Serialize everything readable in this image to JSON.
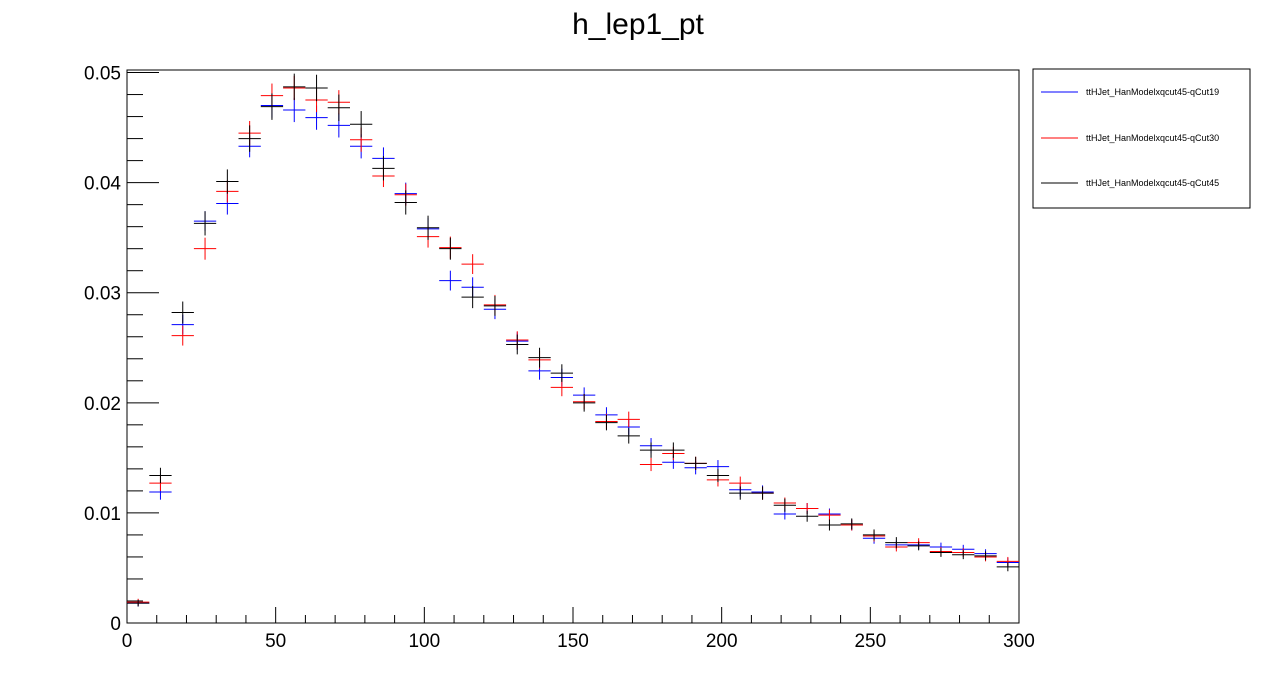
{
  "chart_data": {
    "type": "scatter",
    "title": "h_lep1_pt",
    "xlabel": "",
    "ylabel": "",
    "xlim": [
      0,
      300
    ],
    "ylim": [
      0,
      0.05
    ],
    "bin_width": 7.5,
    "x_ticks": [
      0,
      50,
      100,
      150,
      200,
      250,
      300
    ],
    "x_tick_labels": [
      "0",
      "50",
      "100",
      "150",
      "200",
      "250",
      "300"
    ],
    "y_ticks": [
      0,
      0.01,
      0.02,
      0.03,
      0.04,
      0.05
    ],
    "y_tick_labels": [
      "0",
      "0.01",
      "0.02",
      "0.03",
      "0.04",
      "0.05"
    ],
    "grid": false,
    "legend_position": "outside-top-right",
    "x": [
      3.75,
      11.25,
      18.75,
      26.25,
      33.75,
      41.25,
      48.75,
      56.25,
      63.75,
      71.25,
      78.75,
      86.25,
      93.75,
      101.25,
      108.75,
      116.25,
      123.75,
      131.25,
      138.75,
      146.25,
      153.75,
      161.25,
      168.75,
      176.25,
      183.75,
      191.25,
      198.75,
      206.25,
      213.75,
      221.25,
      228.75,
      236.25,
      243.75,
      251.25,
      258.75,
      266.25,
      273.75,
      281.25,
      288.75,
      296.25
    ],
    "series": [
      {
        "name": "ttHJet_HanModelxqcut45-qCut19",
        "color": "#0000ff",
        "values": [
          0.0018,
          0.0119,
          0.0271,
          0.0365,
          0.0381,
          0.0433,
          0.047,
          0.0466,
          0.0459,
          0.0452,
          0.0433,
          0.0422,
          0.039,
          0.0358,
          0.0311,
          0.0305,
          0.0285,
          0.0256,
          0.0229,
          0.0223,
          0.0207,
          0.0189,
          0.0178,
          0.0161,
          0.0146,
          0.0141,
          0.0142,
          0.0121,
          0.0119,
          0.0099,
          0.0104,
          0.0099,
          0.0089,
          0.0077,
          0.0071,
          0.0071,
          0.0069,
          0.0067,
          0.0063,
          0.0055
        ],
        "errors": [
          0.0003,
          0.0007,
          0.0009,
          0.0009,
          0.001,
          0.001,
          0.0011,
          0.0011,
          0.0011,
          0.0011,
          0.0011,
          0.001,
          0.001,
          0.001,
          0.0009,
          0.0009,
          0.0009,
          0.0008,
          0.0008,
          0.0008,
          0.0007,
          0.0007,
          0.0007,
          0.0007,
          0.0006,
          0.0006,
          0.0006,
          0.0006,
          0.0006,
          0.0005,
          0.0005,
          0.0005,
          0.0005,
          0.0005,
          0.0004,
          0.0004,
          0.0004,
          0.0004,
          0.0004,
          0.0004
        ]
      },
      {
        "name": "ttHJet_HanModelxqcut45-qCut30",
        "color": "#ff0000",
        "values": [
          0.0019,
          0.0127,
          0.0261,
          0.034,
          0.0392,
          0.0445,
          0.0479,
          0.0486,
          0.0475,
          0.0473,
          0.0439,
          0.0406,
          0.0389,
          0.0351,
          0.0341,
          0.0326,
          0.0289,
          0.0257,
          0.0239,
          0.0214,
          0.0201,
          0.0183,
          0.0185,
          0.0144,
          0.0154,
          0.0145,
          0.013,
          0.0127,
          0.0118,
          0.0109,
          0.0104,
          0.0098,
          0.0089,
          0.0079,
          0.0069,
          0.0073,
          0.0065,
          0.0064,
          0.006,
          0.0056
        ],
        "errors": [
          0.0003,
          0.0007,
          0.0009,
          0.001,
          0.001,
          0.0011,
          0.0011,
          0.0011,
          0.0011,
          0.0011,
          0.0011,
          0.001,
          0.001,
          0.001,
          0.001,
          0.0009,
          0.0009,
          0.0008,
          0.0008,
          0.0008,
          0.0007,
          0.0007,
          0.0007,
          0.0006,
          0.0006,
          0.0006,
          0.0006,
          0.0006,
          0.0006,
          0.0005,
          0.0005,
          0.0005,
          0.0005,
          0.0005,
          0.0004,
          0.0004,
          0.0004,
          0.0004,
          0.0004,
          0.0004
        ]
      },
      {
        "name": "ttHJet_HanModelxqcut45-qCut45",
        "color": "#000000",
        "values": [
          0.0018,
          0.0134,
          0.0282,
          0.0363,
          0.0401,
          0.044,
          0.0469,
          0.0487,
          0.0486,
          0.0468,
          0.0453,
          0.0413,
          0.0382,
          0.0359,
          0.034,
          0.0296,
          0.0288,
          0.0253,
          0.0241,
          0.0227,
          0.02,
          0.0182,
          0.017,
          0.0157,
          0.0157,
          0.0145,
          0.0134,
          0.0118,
          0.0118,
          0.0107,
          0.0097,
          0.0089,
          0.009,
          0.008,
          0.0073,
          0.007,
          0.0064,
          0.0062,
          0.0061,
          0.0051
        ],
        "errors": [
          0.0003,
          0.0007,
          0.001,
          0.0011,
          0.0011,
          0.0012,
          0.0012,
          0.0012,
          0.0012,
          0.0012,
          0.0012,
          0.0011,
          0.0011,
          0.0011,
          0.001,
          0.001,
          0.0009,
          0.0009,
          0.0009,
          0.0008,
          0.0008,
          0.0007,
          0.0007,
          0.0007,
          0.0007,
          0.0006,
          0.0006,
          0.0006,
          0.0006,
          0.0006,
          0.0005,
          0.0005,
          0.0005,
          0.0005,
          0.0005,
          0.0004,
          0.0004,
          0.0004,
          0.0004,
          0.0004
        ]
      }
    ]
  }
}
